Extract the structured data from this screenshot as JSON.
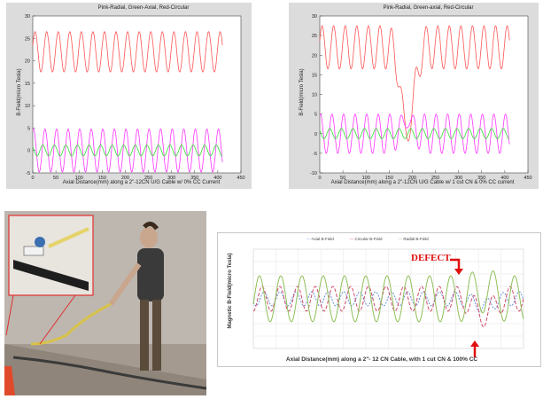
{
  "charts": [
    {
      "title": "Pink-Radial, Green-Axial, Red-Circular",
      "xlabel": "Axial Distance(mm) along a 2\"-12CN U/G Cable w/ 0% CC Current",
      "ylabel": "B-Field(micro Tesla)"
    },
    {
      "title": "Pink-Radial, Green-axial, Red-Circular",
      "xlabel": "Axial Distance(mm) along a 2\"-12CN U/G Cable w/ 1 cut CN & 0% CC current",
      "ylabel": "B-Field(micro Tesla)"
    },
    {
      "title": "",
      "xlabel": "Axial Distance(mm) along a 2\"- 12 CN Cable, with 1 cut CN & 100% CC",
      "ylabel": "Magnetic B-Field(micro Tesla)",
      "legend": [
        "Axial B-Field",
        "Circular B-Field",
        "Radial B-Field"
      ],
      "annotation": "DEFECT"
    }
  ],
  "chart_data": [
    {
      "type": "line",
      "title": "Pink-Radial, Green-Axial, Red-Circular",
      "xlabel": "Axial Distance(mm) along a 2\"-12CN U/G Cable w/ 0% CC Current",
      "ylabel": "B-Field(micro Tesla)",
      "xlim": [
        0,
        450
      ],
      "ylim": [
        -5,
        30
      ],
      "xticks": [
        0,
        50,
        100,
        150,
        200,
        250,
        300,
        350,
        400,
        450
      ],
      "yticks": [
        -5,
        0,
        5,
        10,
        15,
        20,
        25,
        30
      ],
      "series": [
        {
          "color": "#ff5555",
          "x_range": [
            0,
            410
          ],
          "mean": 22,
          "amp": 4.5,
          "period": 25,
          "phase": 0.3
        },
        {
          "color": "#ff33ff",
          "x_range": [
            0,
            410
          ],
          "mean": 0,
          "amp": 4.8,
          "period": 25,
          "phase": 1.2
        },
        {
          "color": "#33dd33",
          "x_range": [
            0,
            410
          ],
          "mean": 0,
          "amp": 1.2,
          "period": 25,
          "phase": 2.4
        }
      ]
    },
    {
      "type": "line",
      "title": "Pink-Radial, Green-axial, Red-Circular",
      "xlabel": "Axial Distance(mm) along a 2\"-12CN U/G Cable w/ 1 cut CN & 0% CC current",
      "ylabel": "B-Field(micro Tesla)",
      "xlim": [
        0,
        450
      ],
      "ylim": [
        -10,
        30
      ],
      "xticks": [
        0,
        50,
        100,
        150,
        200,
        250,
        300,
        350,
        400,
        450
      ],
      "yticks": [
        -10,
        -5,
        0,
        5,
        10,
        15,
        20,
        25,
        30
      ],
      "defect_x": 190,
      "series": [
        {
          "color": "#ff5555",
          "x_range": [
            0,
            410
          ],
          "mean": 22,
          "amp": 5.5,
          "period": 25,
          "phase": 0.3,
          "defect_shift": -7
        },
        {
          "color": "#ff33ff",
          "x_range": [
            0,
            410
          ],
          "mean": 0,
          "amp": 5,
          "period": 25,
          "phase": 1.2,
          "defect_shift": 3
        },
        {
          "color": "#33dd33",
          "x_range": [
            0,
            410
          ],
          "mean": 0,
          "amp": 1.3,
          "period": 25,
          "phase": 2.4,
          "defect_shift": 0
        }
      ]
    },
    {
      "type": "line",
      "title": "",
      "xlabel": "Axial Distance(mm) along a 2\"- 12 CN Cable, with 1 cut CN & 100% CC",
      "ylabel": "Magnetic B-Field(micro Tesla)",
      "legend": [
        "Axial B-Field",
        "Circular B-Field",
        "Radial B-Field"
      ],
      "series": [
        {
          "name": "Axial B-Field",
          "color": "#6a8fd6"
        },
        {
          "name": "Circular B-Field",
          "color": "#d04b6a"
        },
        {
          "name": "Radial B-Field",
          "color": "#8fbf5a"
        }
      ],
      "annotation": "DEFECT"
    }
  ],
  "colors": {
    "panel_bg": "#dcdcdc",
    "plot_bg": "#ffffff",
    "defect_red": "#e01010"
  }
}
